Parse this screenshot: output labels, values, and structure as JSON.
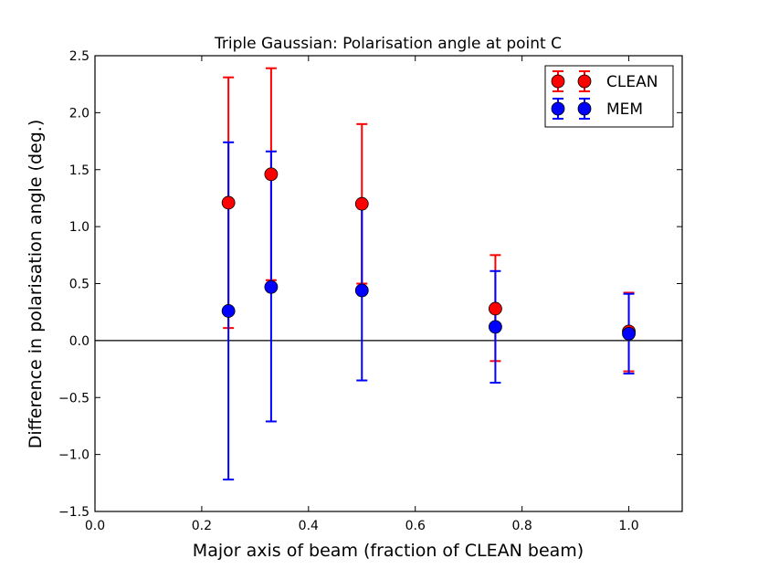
{
  "chart_data": {
    "type": "scatter",
    "title": "Triple Gaussian: Polarisation angle at point C",
    "xlabel": "Major axis of beam (fraction of CLEAN beam)",
    "ylabel": "Difference in polarisation angle (deg.)",
    "xlim": [
      0.0,
      1.1
    ],
    "ylim": [
      -1.5,
      2.5
    ],
    "x_ticks": [
      "0.0",
      "0.2",
      "0.4",
      "0.6",
      "0.8",
      "1.0"
    ],
    "y_ticks": [
      "−1.5",
      "−1.0",
      "−0.5",
      "0.0",
      "0.5",
      "1.0",
      "1.5",
      "2.0",
      "2.5"
    ],
    "x_tick_values": [
      0.0,
      0.2,
      0.4,
      0.6,
      0.8,
      1.0
    ],
    "y_tick_values": [
      -1.5,
      -1.0,
      -0.5,
      0.0,
      0.5,
      1.0,
      1.5,
      2.0,
      2.5
    ],
    "reference_line_y": 0.0,
    "grid": false,
    "legend_position": "top-right",
    "series": [
      {
        "name": "CLEAN",
        "color": "#ff0000",
        "points": [
          {
            "x": 0.25,
            "y": 1.21,
            "ylow": 0.11,
            "yhigh": 2.31
          },
          {
            "x": 0.33,
            "y": 1.46,
            "ylow": 0.53,
            "yhigh": 2.39
          },
          {
            "x": 0.5,
            "y": 1.2,
            "ylow": 0.5,
            "yhigh": 1.9
          },
          {
            "x": 0.75,
            "y": 0.28,
            "ylow": -0.18,
            "yhigh": 0.75
          },
          {
            "x": 1.0,
            "y": 0.08,
            "ylow": -0.27,
            "yhigh": 0.42
          }
        ]
      },
      {
        "name": "MEM",
        "color": "#0000ff",
        "points": [
          {
            "x": 0.25,
            "y": 0.26,
            "ylow": -1.22,
            "yhigh": 1.74
          },
          {
            "x": 0.33,
            "y": 0.47,
            "ylow": -0.71,
            "yhigh": 1.66
          },
          {
            "x": 0.5,
            "y": 0.44,
            "ylow": -0.35,
            "yhigh": 1.22
          },
          {
            "x": 0.75,
            "y": 0.12,
            "ylow": -0.37,
            "yhigh": 0.61
          },
          {
            "x": 1.0,
            "y": 0.06,
            "ylow": -0.29,
            "yhigh": 0.41
          }
        ]
      }
    ]
  }
}
